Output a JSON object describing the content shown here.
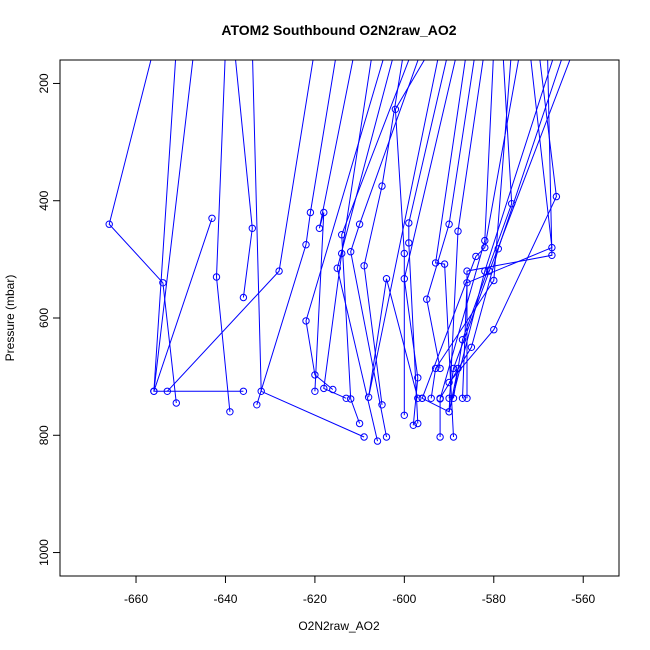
{
  "chart_data": {
    "type": "scatter",
    "title": "ATOM2 Southbound O2N2raw_AO2",
    "xlabel": "O2N2raw_AO2",
    "ylabel": "Pressure (mbar)",
    "xlim": [
      -677,
      -552
    ],
    "ylim": [
      1040,
      160
    ],
    "y_reversed": true,
    "xticks": [
      -660,
      -640,
      -620,
      -600,
      -580,
      -560
    ],
    "yticks": [
      200,
      400,
      600,
      800,
      1000
    ],
    "color": "#0000ff",
    "marker": "open-circle",
    "series": [
      {
        "points": [
          [
            -656,
            140
          ],
          [
            -666,
            440
          ],
          [
            -654,
            540
          ],
          [
            -651,
            745
          ]
        ]
      },
      {
        "points": [
          [
            -647,
            140
          ],
          [
            -656,
            725
          ],
          [
            -636,
            725
          ]
        ]
      },
      {
        "points": [
          [
            -651,
            140
          ],
          [
            -656,
            725
          ],
          [
            -643,
            430
          ]
        ]
      },
      {
        "points": [
          [
            -640,
            140
          ],
          [
            -642,
            530
          ],
          [
            -639,
            760
          ]
        ]
      },
      {
        "points": [
          [
            -638,
            140
          ],
          [
            -634,
            447
          ],
          [
            -636,
            565
          ]
        ]
      },
      {
        "points": [
          [
            -634,
            140
          ],
          [
            -632,
            725
          ],
          [
            -609,
            803
          ]
        ]
      },
      {
        "points": [
          [
            -620,
            140
          ],
          [
            -628,
            520
          ],
          [
            -653,
            725
          ]
        ]
      },
      {
        "points": [
          [
            -615,
            140
          ],
          [
            -621,
            420
          ],
          [
            -622,
            475
          ],
          [
            -633,
            748
          ]
        ]
      },
      {
        "points": [
          [
            -611,
            140
          ],
          [
            -619,
            447
          ],
          [
            -618,
            420
          ],
          [
            -620,
            725
          ]
        ]
      },
      {
        "points": [
          [
            -607,
            140
          ],
          [
            -614,
            490
          ],
          [
            -618,
            720
          ],
          [
            -613,
            737
          ]
        ]
      },
      {
        "points": [
          [
            -604,
            140
          ],
          [
            -622,
            605
          ],
          [
            -620,
            697
          ],
          [
            -616,
            722
          ]
        ]
      },
      {
        "points": [
          [
            -602,
            140
          ],
          [
            -615,
            515
          ],
          [
            -606,
            810
          ]
        ]
      },
      {
        "points": [
          [
            -600,
            140
          ],
          [
            -605,
            375
          ],
          [
            -609,
            511
          ],
          [
            -605,
            748
          ]
        ]
      },
      {
        "points": [
          [
            -598,
            140
          ],
          [
            -614,
            458
          ],
          [
            -612,
            738
          ],
          [
            -610,
            780
          ]
        ]
      },
      {
        "points": [
          [
            -596,
            140
          ],
          [
            -610,
            440
          ],
          [
            -612,
            487
          ],
          [
            -604,
            803
          ]
        ]
      },
      {
        "points": [
          [
            -594,
            140
          ],
          [
            -602,
            244
          ],
          [
            -600,
            490
          ],
          [
            -600,
            766
          ]
        ]
      },
      {
        "points": [
          [
            -592,
            140
          ],
          [
            -608,
            735
          ],
          [
            -604,
            533
          ],
          [
            -597,
            737
          ]
        ]
      },
      {
        "points": [
          [
            -590,
            140
          ],
          [
            -599,
            438
          ],
          [
            -599,
            472
          ],
          [
            -597,
            780
          ]
        ]
      },
      {
        "points": [
          [
            -588,
            140
          ],
          [
            -600,
            533
          ],
          [
            -597,
            702
          ],
          [
            -598,
            783
          ]
        ]
      },
      {
        "points": [
          [
            -586,
            140
          ],
          [
            -593,
            506
          ],
          [
            -591,
            508
          ],
          [
            -589,
            803
          ]
        ]
      },
      {
        "points": [
          [
            -584,
            140
          ],
          [
            -590,
            440
          ],
          [
            -595,
            568
          ],
          [
            -592,
            686
          ]
        ]
      },
      {
        "points": [
          [
            -582,
            140
          ],
          [
            -588,
            452
          ],
          [
            -590,
            760
          ],
          [
            -588,
            686
          ]
        ]
      },
      {
        "points": [
          [
            -580,
            140
          ],
          [
            -582,
            468
          ],
          [
            -592,
            738
          ],
          [
            -592,
            803
          ]
        ]
      },
      {
        "points": [
          [
            -578,
            140
          ],
          [
            -576,
            405
          ],
          [
            -587,
            637
          ],
          [
            -589,
            737
          ]
        ]
      },
      {
        "points": [
          [
            -576,
            140
          ],
          [
            -580,
            536
          ],
          [
            -593,
            686
          ],
          [
            -594,
            737
          ]
        ]
      },
      {
        "points": [
          [
            -574,
            140
          ],
          [
            -582,
            480
          ],
          [
            -584,
            495
          ],
          [
            -596,
            737
          ]
        ]
      },
      {
        "points": [
          [
            -572,
            140
          ],
          [
            -567,
            480
          ],
          [
            -586,
            540
          ],
          [
            -587,
            737
          ]
        ]
      },
      {
        "points": [
          [
            -570,
            140
          ],
          [
            -566,
            393
          ],
          [
            -580,
            620
          ],
          [
            -590,
            710
          ]
        ]
      },
      {
        "points": [
          [
            -568,
            140
          ],
          [
            -567,
            493
          ],
          [
            -586,
            520
          ],
          [
            -586,
            737
          ]
        ]
      },
      {
        "points": [
          [
            -566,
            140
          ],
          [
            -582,
            520
          ],
          [
            -590,
            760
          ],
          [
            -596,
            737
          ]
        ]
      },
      {
        "points": [
          [
            -564,
            140
          ],
          [
            -579,
            482
          ],
          [
            -585,
            650
          ],
          [
            -592,
            737
          ]
        ]
      },
      {
        "points": [
          [
            -562,
            140
          ],
          [
            -581,
            520
          ],
          [
            -589,
            686
          ],
          [
            -590,
            737
          ]
        ]
      }
    ]
  }
}
